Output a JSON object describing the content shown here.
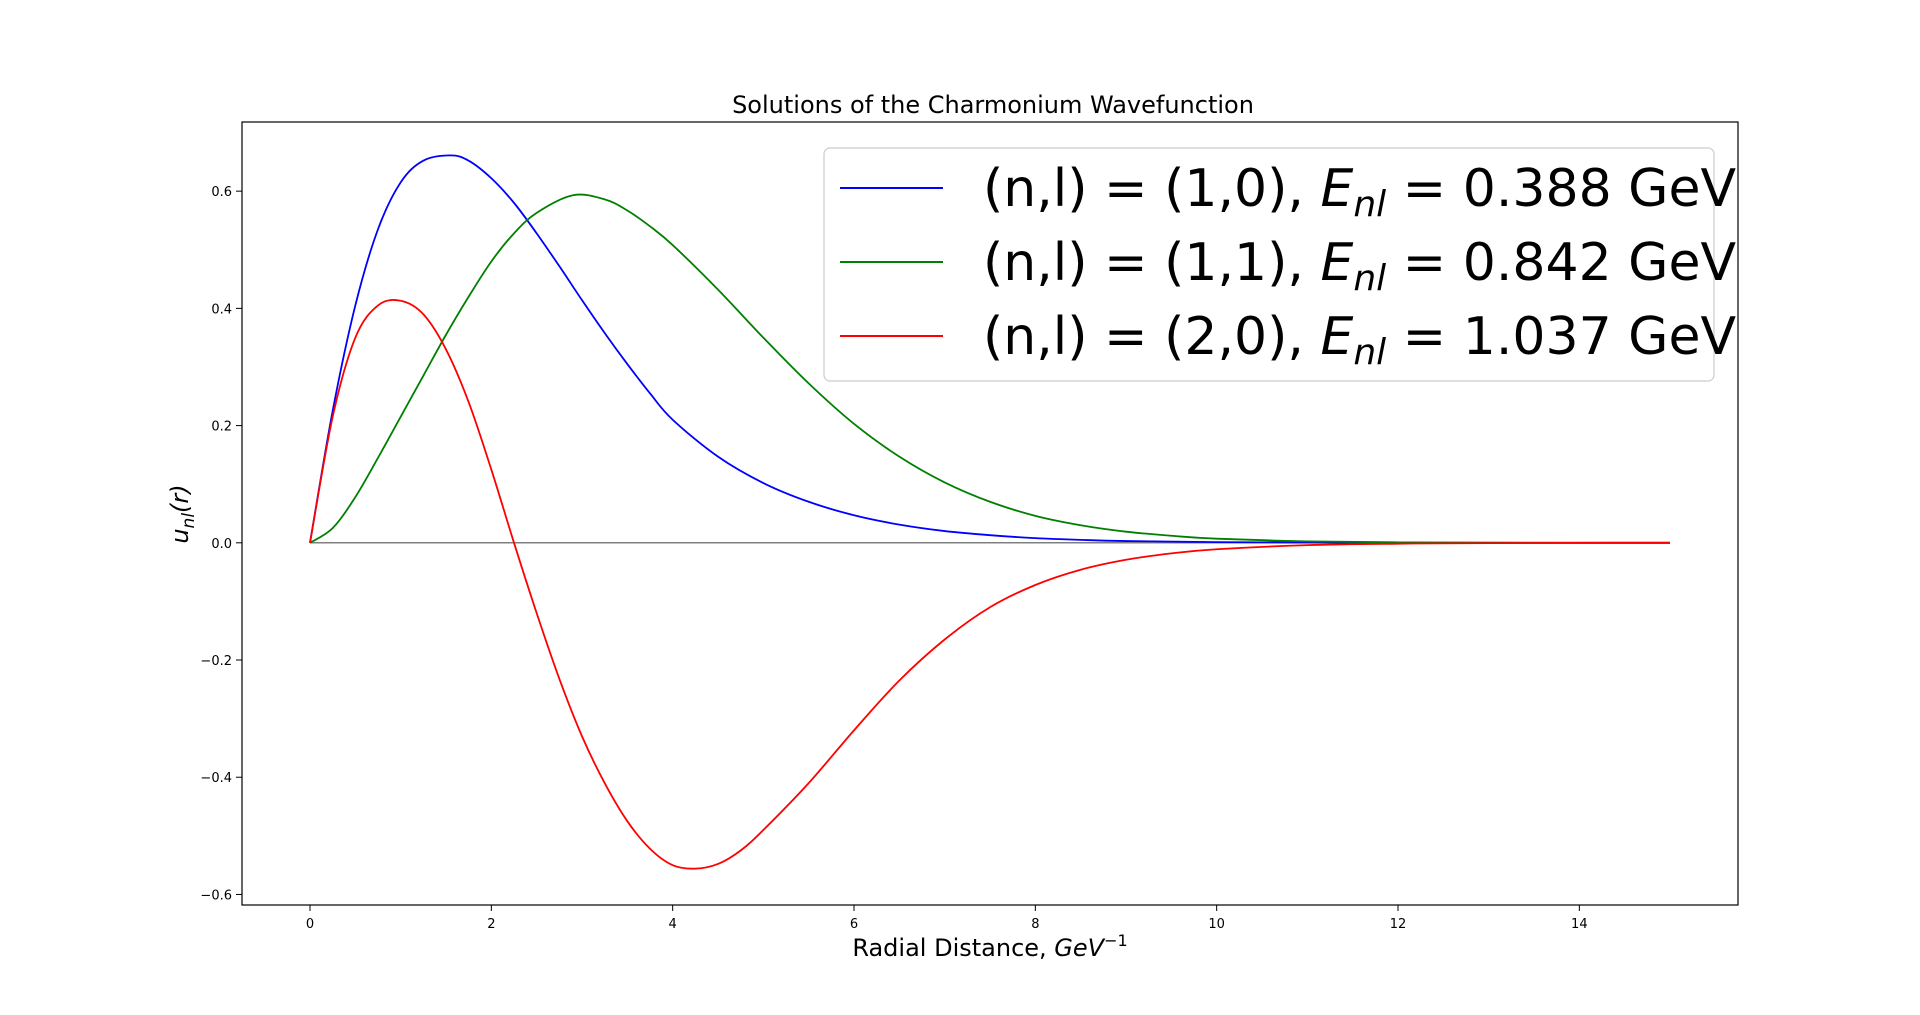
{
  "chart_data": {
    "type": "line",
    "title": "Solutions of the Charmonium Wavefunction",
    "xlabel": {
      "prefix": "Radial Distance, ",
      "base": "GeV",
      "sup": "−1"
    },
    "ylabel": {
      "base": "u",
      "sub": "nl",
      "suffix": "(r)"
    },
    "xlim": [
      -0.75,
      15.75
    ],
    "ylim": [
      -0.618,
      0.718
    ],
    "xticks": [
      0,
      2,
      4,
      6,
      8,
      10,
      12,
      14
    ],
    "xtick_labels": [
      "0",
      "2",
      "4",
      "6",
      "8",
      "10",
      "12",
      "14"
    ],
    "yticks": [
      -0.6,
      -0.4,
      -0.2,
      0.0,
      0.2,
      0.4,
      0.6
    ],
    "ytick_labels": [
      "−0.6",
      "−0.4",
      "−0.2",
      "0.0",
      "0.2",
      "0.4",
      "0.6"
    ],
    "grid": false,
    "legend_position": "top-right",
    "zero_line": {
      "x": [
        0,
        15
      ],
      "y": 0.0,
      "color": "#808080"
    },
    "series": [
      {
        "name": "(n,l) = (1,0), E_nl = 0.388 GeV",
        "legend": {
          "pre": "(n,l) = (1,0), ",
          "E": "E",
          "sub": "nl",
          "post": " =  0.388 GeV"
        },
        "color": "#0000ff",
        "x": [
          0,
          0.25,
          0.5,
          0.75,
          1.0,
          1.25,
          1.55,
          1.75,
          2.0,
          2.25,
          2.5,
          2.75,
          3.0,
          3.25,
          3.5,
          3.75,
          4.0,
          4.5,
          5.0,
          5.5,
          6.0,
          6.5,
          7.0,
          7.5,
          8.0,
          8.5,
          9.0,
          10.0,
          11.0,
          12.0,
          13.0,
          14.0,
          15.0
        ],
        "y": [
          0,
          0.225,
          0.405,
          0.535,
          0.615,
          0.652,
          0.661,
          0.652,
          0.622,
          0.58,
          0.528,
          0.472,
          0.414,
          0.358,
          0.305,
          0.255,
          0.21,
          0.147,
          0.102,
          0.07,
          0.047,
          0.031,
          0.02,
          0.013,
          0.008,
          0.005,
          0.003,
          0.0012,
          0.0004,
          0.0001,
          0.0,
          0.0,
          0.0
        ]
      },
      {
        "name": "(n,l) = (1,1), E_nl = 0.842 GeV",
        "legend": {
          "pre": "(n,l) = (1,1), ",
          "E": "E",
          "sub": "nl",
          "post": " =  0.842 GeV"
        },
        "color": "#008000",
        "x": [
          0,
          0.25,
          0.5,
          0.75,
          1.0,
          1.25,
          1.5,
          1.75,
          2.0,
          2.25,
          2.5,
          2.9,
          3.25,
          3.5,
          3.75,
          4.0,
          4.5,
          5.0,
          5.5,
          6.0,
          6.5,
          7.0,
          7.5,
          8.0,
          8.5,
          9.0,
          9.5,
          10.0,
          11.0,
          12.0,
          13.0,
          14.0,
          15.0
        ],
        "y": [
          0,
          0.025,
          0.078,
          0.145,
          0.215,
          0.285,
          0.355,
          0.42,
          0.48,
          0.528,
          0.563,
          0.593,
          0.586,
          0.567,
          0.54,
          0.508,
          0.432,
          0.35,
          0.272,
          0.203,
          0.147,
          0.103,
          0.07,
          0.046,
          0.03,
          0.019,
          0.012,
          0.007,
          0.0025,
          0.0008,
          0.0002,
          0.0,
          0.0
        ]
      },
      {
        "name": "(n,l) = (2,0), E_nl = 1.037 GeV",
        "legend": {
          "pre": "(n,l) = (2,0), ",
          "E": "E",
          "sub": "nl",
          "post": " =  1.037 GeV"
        },
        "color": "#ff0000",
        "x": [
          0,
          0.25,
          0.5,
          0.75,
          1.0,
          1.25,
          1.5,
          1.75,
          2.0,
          2.25,
          2.5,
          2.75,
          3.0,
          3.25,
          3.5,
          3.75,
          4.0,
          4.25,
          4.5,
          4.75,
          5.0,
          5.5,
          6.0,
          6.5,
          7.0,
          7.5,
          8.0,
          8.5,
          9.0,
          9.5,
          10.0,
          11.0,
          12.0,
          13.0,
          14.0,
          15.0
        ],
        "y": [
          0,
          0.215,
          0.35,
          0.405,
          0.413,
          0.39,
          0.33,
          0.24,
          0.125,
          0.0,
          -0.12,
          -0.232,
          -0.33,
          -0.41,
          -0.475,
          -0.522,
          -0.55,
          -0.556,
          -0.548,
          -0.525,
          -0.49,
          -0.41,
          -0.32,
          -0.235,
          -0.165,
          -0.11,
          -0.072,
          -0.046,
          -0.029,
          -0.018,
          -0.011,
          -0.004,
          -0.0015,
          -0.0005,
          -0.0001,
          0.0
        ]
      }
    ]
  }
}
